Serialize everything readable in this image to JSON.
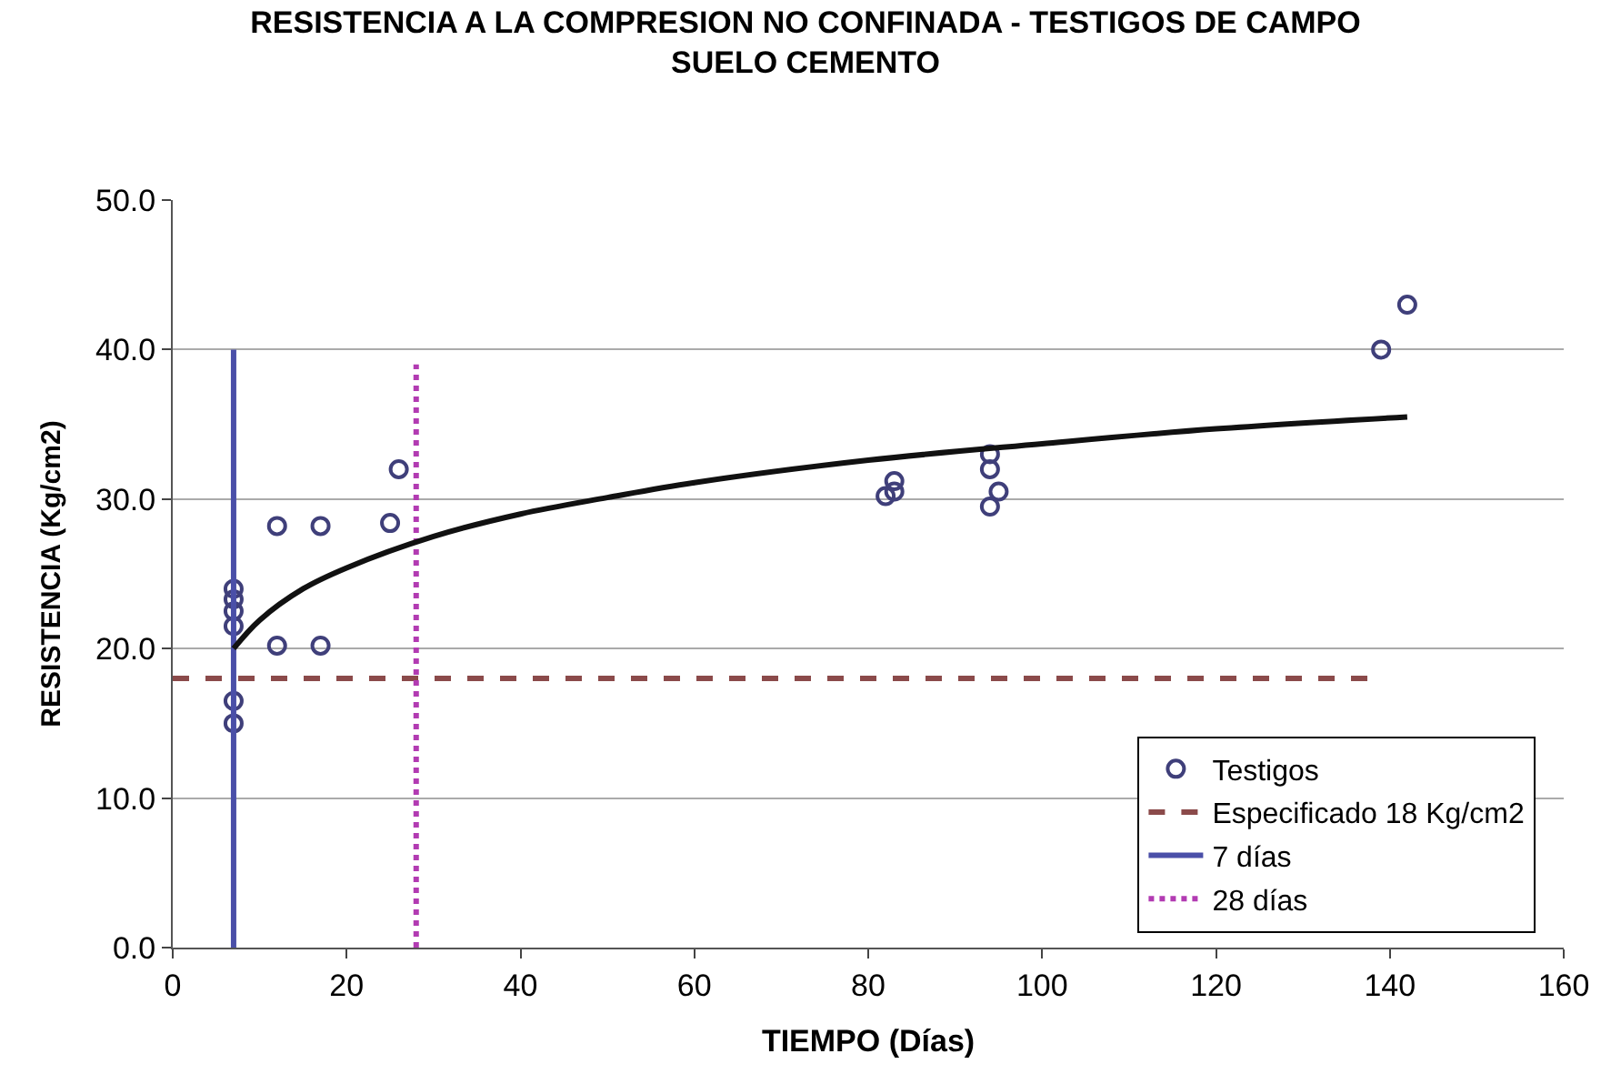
{
  "chart_data": {
    "type": "scatter",
    "title": "RESISTENCIA A LA COMPRESION NO CONFINADA - TESTIGOS DE CAMPO SUELO CEMENTO",
    "xlabel": "TIEMPO (Días)",
    "ylabel": "RESISTENCIA (Kg/cm2)",
    "xlim": [
      0,
      160
    ],
    "xticks": [
      0,
      20,
      40,
      60,
      80,
      100,
      120,
      140,
      160
    ],
    "ylim": [
      0,
      50
    ],
    "yticks": [
      {
        "value": 0,
        "label": "0.0"
      },
      {
        "value": 10,
        "label": "10.0"
      },
      {
        "value": 20,
        "label": "20.0"
      },
      {
        "value": 30,
        "label": "30.0"
      },
      {
        "value": 40,
        "label": "40.0"
      },
      {
        "value": 50,
        "label": "50.0"
      }
    ],
    "grid": "y",
    "legend": "bottom right",
    "series": [
      {
        "name": "Testigos",
        "marker": "circle",
        "color": "#3f3f7a",
        "x": [
          7,
          7,
          7,
          7,
          7,
          7,
          12,
          12,
          17,
          17,
          25,
          26,
          82,
          83,
          83,
          94,
          94,
          94,
          95,
          139,
          142
        ],
        "values": [
          24,
          23.3,
          22.5,
          21.5,
          16.5,
          15,
          28.2,
          20.2,
          28.2,
          20.2,
          28.4,
          32,
          30.2,
          30.5,
          31.2,
          33,
          32,
          29.5,
          30.5,
          40,
          43
        ]
      },
      {
        "name": "Especificado 18 Kg/cm2",
        "type": "line",
        "line_style": "dashed",
        "color": "#8b4a4a",
        "x": [
          0,
          138
        ],
        "values": [
          18,
          18
        ]
      },
      {
        "name": "7 días",
        "type": "line",
        "line_style": "solid",
        "color": "#4a4fa8",
        "x": [
          7,
          7
        ],
        "values": [
          0,
          40
        ]
      },
      {
        "name": "28 días",
        "type": "line",
        "line_style": "dotted",
        "color": "#b23bb2",
        "x": [
          28,
          28
        ],
        "values": [
          0,
          39
        ]
      },
      {
        "type": "line",
        "line_style": "solid",
        "color": "#111111",
        "x": [
          7,
          10,
          15,
          20,
          30,
          40,
          50,
          60,
          80,
          100,
          120,
          142
        ],
        "values": [
          20,
          21.9,
          24,
          25.4,
          27.5,
          29,
          30.1,
          31.1,
          32.6,
          33.7,
          34.7,
          35.5
        ]
      }
    ]
  }
}
